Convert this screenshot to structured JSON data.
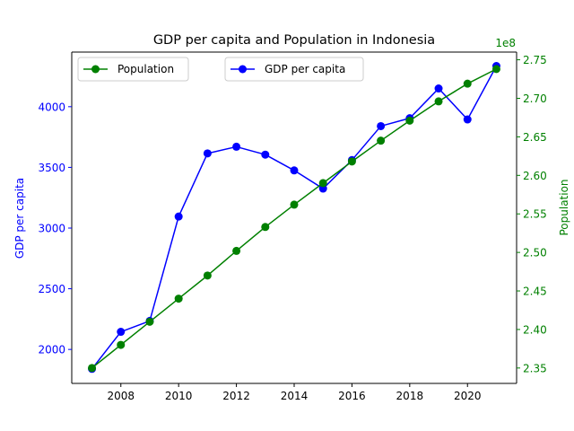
{
  "chart_data": {
    "type": "line",
    "title": "GDP per capita and Population in Indonesia",
    "x": [
      2007,
      2008,
      2009,
      2010,
      2011,
      2012,
      2013,
      2014,
      2015,
      2016,
      2017,
      2018,
      2019,
      2020,
      2021
    ],
    "x_ticks": [
      "2008",
      "2010",
      "2012",
      "2014",
      "2016",
      "2018",
      "2020"
    ],
    "xlim": [
      2006.3,
      2021.7
    ],
    "left_axis": {
      "label": "GDP per capita",
      "color": "#0000ff",
      "ticks": [
        "2000",
        "2500",
        "3000",
        "3500",
        "4000"
      ],
      "ylim": [
        1720,
        4450
      ]
    },
    "right_axis": {
      "label": "Population",
      "color": "#008000",
      "offset_text": "1e8",
      "ticks": [
        "2.35",
        "2.40",
        "2.45",
        "2.50",
        "2.55",
        "2.60",
        "2.65",
        "2.70",
        "2.75"
      ],
      "ylim": [
        2.33,
        2.76
      ]
    },
    "series": [
      {
        "name": "GDP per capita",
        "axis": "left",
        "color": "#0000ff",
        "values": [
          1840,
          2145,
          2235,
          3095,
          3615,
          3670,
          3605,
          3475,
          3325,
          3560,
          3840,
          3905,
          4150,
          3895,
          4335
        ]
      },
      {
        "name": "Population",
        "axis": "right",
        "color": "#008000",
        "values": [
          2.35,
          2.38,
          2.41,
          2.44,
          2.47,
          2.502,
          2.533,
          2.562,
          2.59,
          2.618,
          2.645,
          2.671,
          2.696,
          2.719,
          2.738
        ]
      }
    ],
    "legends": [
      {
        "position": "upper-left",
        "series": "Population"
      },
      {
        "position": "upper-center",
        "series": "GDP per capita"
      }
    ]
  }
}
